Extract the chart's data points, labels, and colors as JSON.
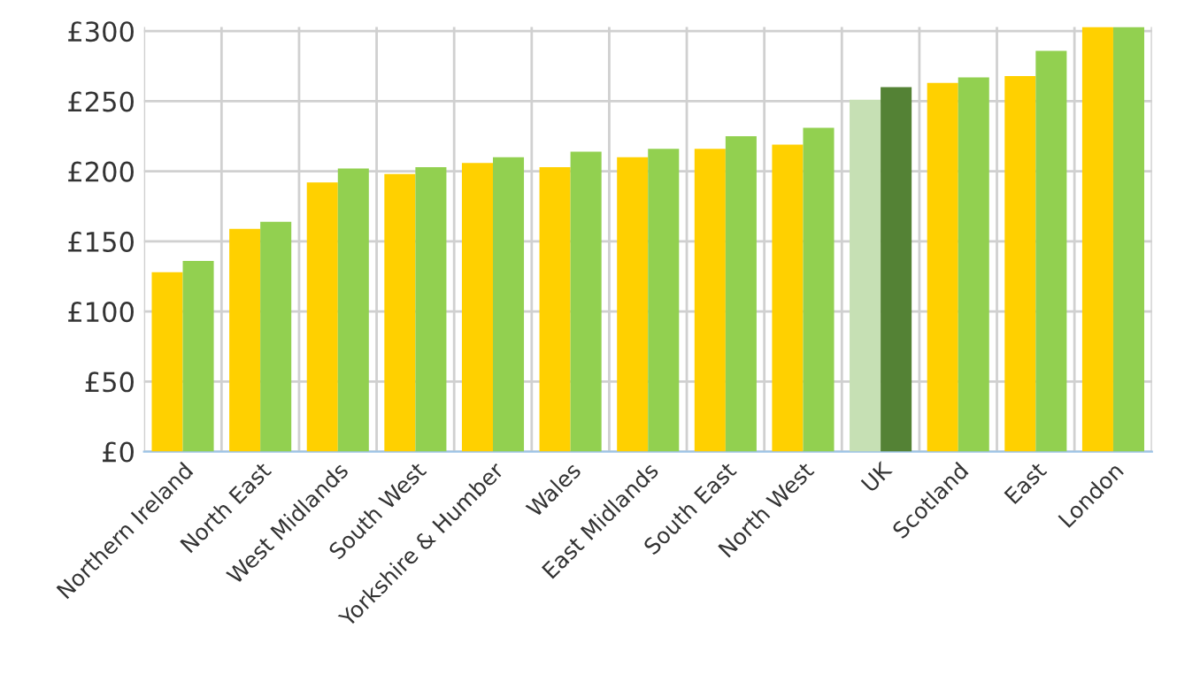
{
  "chart_data": {
    "type": "bar",
    "categories": [
      "Northern Ireland",
      "North East",
      "West Midlands",
      "South West",
      "Yorkshire & Humber",
      "Wales",
      "East Midlands",
      "South East",
      "North West",
      "UK",
      "Scotland",
      "East",
      "London"
    ],
    "series": [
      {
        "colors": [
          "#ffd000",
          "#ffd000",
          "#ffd000",
          "#ffd000",
          "#ffd000",
          "#ffd000",
          "#ffd000",
          "#ffd000",
          "#ffd000",
          "#c6e0b4",
          "#ffd000",
          "#ffd000",
          "#ffd000"
        ],
        "values": [
          128,
          159,
          192,
          198,
          206,
          203,
          210,
          216,
          219,
          251,
          263,
          268,
          303
        ]
      },
      {
        "colors": [
          "#92d050",
          "#92d050",
          "#92d050",
          "#92d050",
          "#92d050",
          "#92d050",
          "#92d050",
          "#92d050",
          "#92d050",
          "#548235",
          "#92d050",
          "#92d050",
          "#92d050"
        ],
        "values": [
          136,
          164,
          202,
          203,
          210,
          214,
          216,
          225,
          231,
          260,
          267,
          286,
          303
        ]
      }
    ],
    "ylim": [
      0,
      303
    ],
    "yticks": [
      {
        "value": 0,
        "label": "£0"
      },
      {
        "value": 50,
        "label": "£50"
      },
      {
        "value": 100,
        "label": "£100"
      },
      {
        "value": 150,
        "label": "£150"
      },
      {
        "value": 200,
        "label": "£200"
      },
      {
        "value": 250,
        "label": "£250"
      },
      {
        "value": 300,
        "label": "£300"
      }
    ],
    "grid": true
  }
}
